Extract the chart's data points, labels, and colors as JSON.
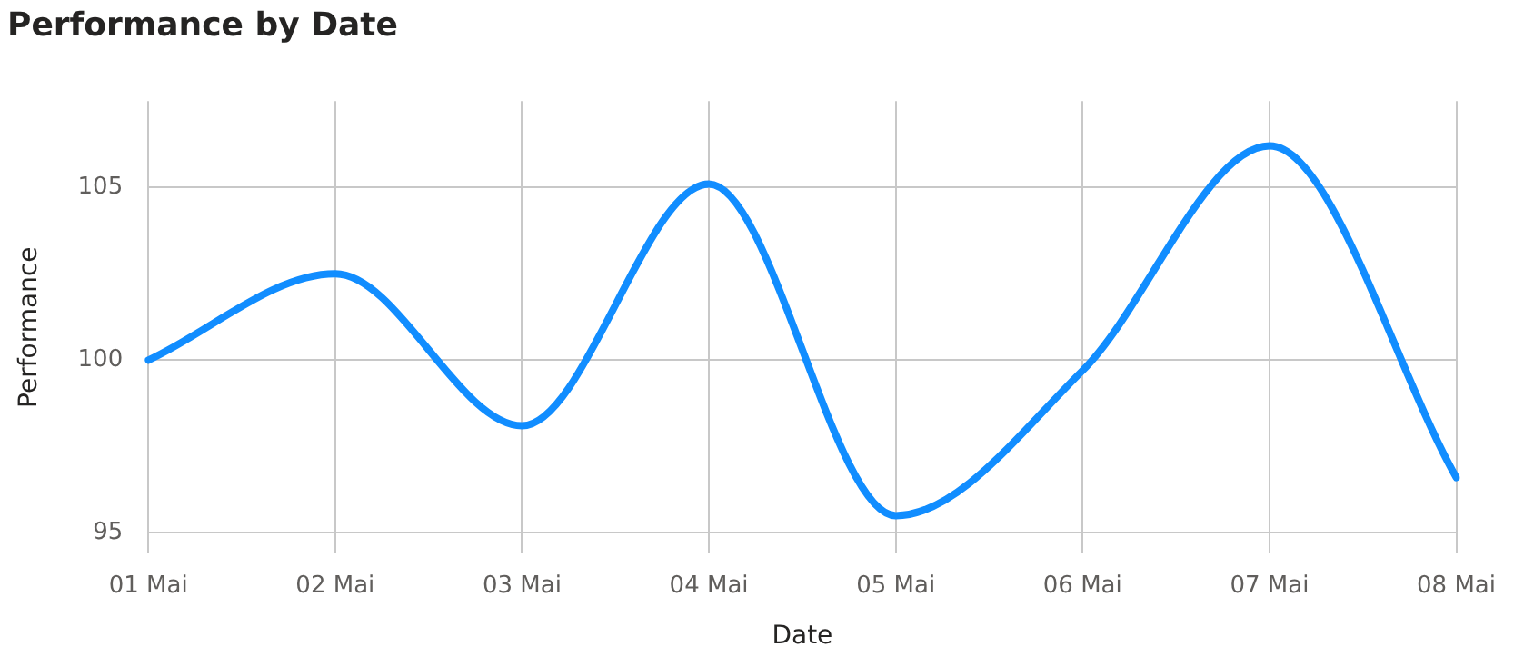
{
  "chart_data": {
    "type": "line",
    "title": "Performance by Date",
    "xlabel": "Date",
    "ylabel": "Performance",
    "categories": [
      "01 Mai",
      "02 Mai",
      "03 Mai",
      "04 Mai",
      "05 Mai",
      "06 Mai",
      "07 Mai",
      "08 Mai"
    ],
    "series": [
      {
        "color": "#118dff",
        "values": [
          100,
          102.5,
          98.1,
          105.1,
          95.5,
          99.7,
          106.2,
          96.6
        ]
      }
    ],
    "ylim": [
      94.4,
      107.5
    ],
    "yticks": [
      95,
      100,
      105
    ],
    "grid": true,
    "legend": false,
    "marker": "none",
    "line_style": "solid"
  }
}
